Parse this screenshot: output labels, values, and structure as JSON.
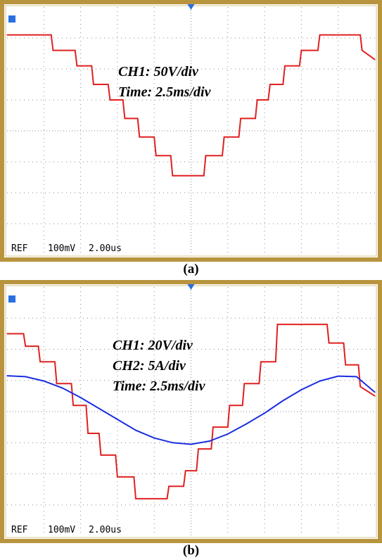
{
  "chart_data": [
    {
      "type": "line",
      "panel_caption": "(a)",
      "annotations": [
        "CH1: 50V/div",
        "Time: 2.5ms/div"
      ],
      "status_bar": {
        "ref": "REF",
        "volts": "100mV",
        "time": "2.00us"
      },
      "grid": true,
      "xlim_div": [
        0,
        10
      ],
      "ylim_div": [
        -4,
        4
      ],
      "series": [
        {
          "color": "#e02020",
          "x": [
            0,
            0.05,
            1.2,
            1.25,
            1.85,
            1.9,
            2.3,
            2.35,
            2.75,
            2.8,
            3.15,
            3.2,
            3.55,
            3.6,
            4.0,
            4.05,
            4.45,
            4.5,
            5.35,
            5.4,
            5.85,
            5.9,
            6.3,
            6.35,
            6.75,
            6.8,
            7.1,
            7.15,
            7.5,
            7.55,
            7.95,
            8.0,
            8.45,
            8.5,
            9.6,
            9.65,
            10
          ],
          "y": [
            3.1,
            3.1,
            3.1,
            2.6,
            2.6,
            2.1,
            2.1,
            1.5,
            1.5,
            1.0,
            1.0,
            0.4,
            0.4,
            -0.2,
            -0.2,
            -0.8,
            -0.8,
            -1.45,
            -1.45,
            -0.8,
            -0.8,
            -0.2,
            -0.2,
            0.4,
            0.4,
            1.0,
            1.0,
            1.5,
            1.5,
            2.1,
            2.1,
            2.6,
            2.6,
            3.1,
            3.1,
            2.6,
            2.3
          ]
        }
      ]
    },
    {
      "type": "line",
      "panel_caption": "(b)",
      "annotations": [
        "CH1: 20V/div",
        "CH2: 5A/div",
        "Time: 2.5ms/div"
      ],
      "status_bar": {
        "ref": "REF",
        "volts": "100mV",
        "time": "2.00us"
      },
      "grid": true,
      "xlim_div": [
        0,
        10
      ],
      "ylim_div": [
        -4,
        4
      ],
      "series": [
        {
          "color": "#e02020",
          "x": [
            0,
            0.45,
            0.5,
            0.85,
            0.9,
            1.3,
            1.35,
            1.75,
            1.8,
            2.15,
            2.2,
            2.5,
            2.55,
            2.95,
            3.0,
            3.45,
            3.5,
            4.35,
            4.4,
            4.8,
            4.85,
            5.15,
            5.2,
            5.55,
            5.6,
            6.0,
            6.05,
            6.4,
            6.45,
            6.85,
            6.9,
            7.3,
            7.35,
            8.7,
            8.75,
            9.15,
            9.2,
            9.55,
            9.6,
            10
          ],
          "y": [
            2.5,
            2.5,
            2.1,
            2.1,
            1.6,
            1.6,
            0.9,
            0.9,
            0.2,
            0.2,
            -0.7,
            -0.7,
            -1.4,
            -1.4,
            -2.1,
            -2.1,
            -2.8,
            -2.8,
            -2.4,
            -2.4,
            -1.9,
            -1.9,
            -1.2,
            -1.2,
            -0.5,
            -0.5,
            0.2,
            0.2,
            0.9,
            0.9,
            1.6,
            1.6,
            2.8,
            2.8,
            2.2,
            2.2,
            1.5,
            1.5,
            0.8,
            0.5
          ]
        },
        {
          "color": "#1a2ee0",
          "x": [
            0,
            0.5,
            1.0,
            1.5,
            2.0,
            2.5,
            3.0,
            3.5,
            4.0,
            4.5,
            5.0,
            5.5,
            6.0,
            6.5,
            7.0,
            7.5,
            8.0,
            8.5,
            9.0,
            9.5,
            10
          ],
          "y": [
            1.15,
            1.12,
            0.98,
            0.76,
            0.45,
            0.1,
            -0.25,
            -0.6,
            -0.85,
            -1.0,
            -1.05,
            -0.95,
            -0.72,
            -0.4,
            -0.05,
            0.35,
            0.7,
            0.98,
            1.14,
            1.12,
            0.62
          ]
        }
      ]
    }
  ]
}
